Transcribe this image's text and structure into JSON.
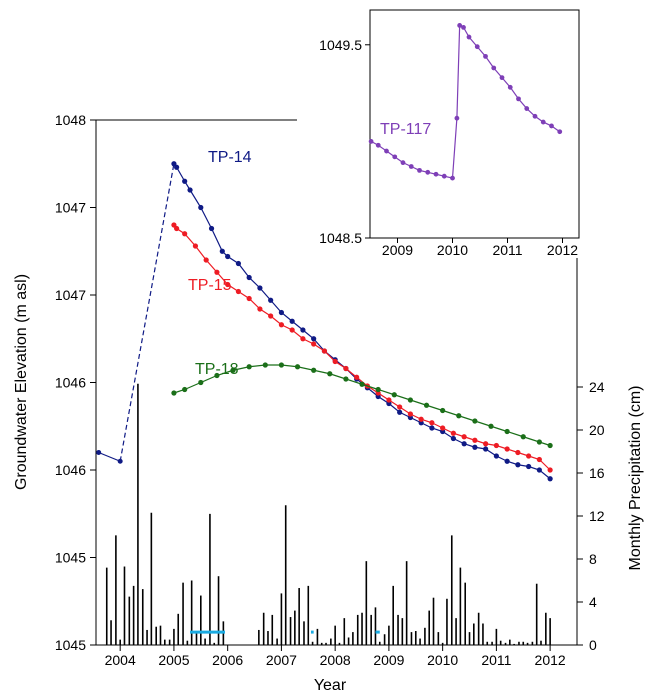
{
  "chart_data": [
    {
      "type": "line",
      "title": "",
      "xlabel": "Year",
      "ylabel": "Groundwater Elevation  (m asl)",
      "y2label": "Monthly Precipitation (cm)",
      "xlim": [
        2003.55,
        2012.5
      ],
      "ylim": [
        1045.0,
        1048.0
      ],
      "x_tick_values": [
        2004.0,
        2005.0,
        2006.0,
        2007.0,
        2008.0,
        2009.0,
        2010.0,
        2011.0,
        2012.0
      ],
      "x_tick_labels": [
        "2004",
        "2005",
        "2006",
        "2007",
        "2008",
        "2009",
        "2010",
        "2011",
        "2012"
      ],
      "y_tick_values": [
        1045.0,
        1045.5,
        1046.0,
        1046.5,
        1047.0,
        1047.5,
        1048.0
      ],
      "y_tick_labels": [
        "1045",
        "1045",
        "1046",
        "1046",
        "1047",
        "1047",
        "1048"
      ],
      "y2lim": [
        0,
        36
      ],
      "y2_tick_values": [
        0,
        4,
        8,
        12,
        16,
        20,
        24
      ],
      "y2_tick_labels": [
        "0",
        "4",
        "8",
        "12",
        "16",
        "20",
        "24"
      ],
      "grid": false,
      "series": [
        {
          "name": "TP-14",
          "color": "#0f1a85",
          "connector": [
            [
              2003.6,
              1046.1
            ],
            [
              2004.0,
              1046.05
            ],
            [
              2005.0,
              1047.75
            ]
          ],
          "x": [
            2005.0,
            2005.05,
            2005.2,
            2005.3,
            2005.5,
            2005.7,
            2005.9,
            2006.0,
            2006.2,
            2006.4,
            2006.6,
            2006.8,
            2007.0,
            2007.2,
            2007.4,
            2007.6,
            2007.8,
            2008.0,
            2008.2,
            2008.4,
            2008.6,
            2008.8,
            2009.0,
            2009.2,
            2009.4,
            2009.6,
            2009.8,
            2010.0,
            2010.2,
            2010.4,
            2010.6,
            2010.8,
            2011.0,
            2011.2,
            2011.4,
            2011.6,
            2011.8,
            2012.0
          ],
          "y": [
            1047.75,
            1047.73,
            1047.65,
            1047.6,
            1047.5,
            1047.38,
            1047.25,
            1047.22,
            1047.18,
            1047.1,
            1047.04,
            1046.97,
            1046.9,
            1046.85,
            1046.8,
            1046.75,
            1046.68,
            1046.63,
            1046.58,
            1046.52,
            1046.47,
            1046.42,
            1046.38,
            1046.33,
            1046.3,
            1046.27,
            1046.24,
            1046.22,
            1046.18,
            1046.15,
            1046.13,
            1046.12,
            1046.08,
            1046.05,
            1046.03,
            1046.02,
            1046.0,
            1045.95
          ]
        },
        {
          "name": "TP-15",
          "color": "#ee1c24",
          "x": [
            2005.0,
            2005.05,
            2005.2,
            2005.4,
            2005.6,
            2005.8,
            2006.0,
            2006.2,
            2006.4,
            2006.6,
            2006.8,
            2007.0,
            2007.2,
            2007.4,
            2007.6,
            2007.8,
            2008.0,
            2008.2,
            2008.4,
            2008.6,
            2008.8,
            2009.0,
            2009.2,
            2009.4,
            2009.6,
            2009.8,
            2010.0,
            2010.2,
            2010.4,
            2010.6,
            2010.8,
            2011.0,
            2011.2,
            2011.4,
            2011.6,
            2011.8,
            2012.0
          ],
          "y": [
            1047.4,
            1047.38,
            1047.35,
            1047.28,
            1047.2,
            1047.13,
            1047.06,
            1047.02,
            1046.98,
            1046.92,
            1046.88,
            1046.83,
            1046.8,
            1046.75,
            1046.72,
            1046.68,
            1046.62,
            1046.58,
            1046.53,
            1046.48,
            1046.44,
            1046.4,
            1046.36,
            1046.32,
            1046.29,
            1046.27,
            1046.24,
            1046.21,
            1046.19,
            1046.17,
            1046.15,
            1046.14,
            1046.12,
            1046.1,
            1046.08,
            1046.06,
            1046.0
          ]
        },
        {
          "name": "TP-18",
          "color": "#1b6f19",
          "x": [
            2005.0,
            2005.2,
            2005.5,
            2005.8,
            2006.1,
            2006.4,
            2006.7,
            2007.0,
            2007.3,
            2007.6,
            2007.9,
            2008.2,
            2008.5,
            2008.8,
            2009.1,
            2009.4,
            2009.7,
            2010.0,
            2010.3,
            2010.6,
            2010.9,
            2011.2,
            2011.5,
            2011.8,
            2012.0
          ],
          "y": [
            1046.44,
            1046.46,
            1046.5,
            1046.54,
            1046.57,
            1046.59,
            1046.6,
            1046.6,
            1046.59,
            1046.57,
            1046.55,
            1046.52,
            1046.49,
            1046.46,
            1046.43,
            1046.4,
            1046.37,
            1046.34,
            1046.31,
            1046.28,
            1046.25,
            1046.22,
            1046.19,
            1046.16,
            1046.14
          ]
        }
      ],
      "precipitation_color": "#000000",
      "precipitation": {
        "x": [
          2003.75,
          2003.83,
          2003.92,
          2004.0,
          2004.08,
          2004.17,
          2004.25,
          2004.33,
          2004.42,
          2004.5,
          2004.58,
          2004.67,
          2004.75,
          2004.83,
          2004.92,
          2005.0,
          2005.08,
          2005.17,
          2005.25,
          2005.33,
          2005.42,
          2005.5,
          2005.58,
          2005.67,
          2005.75,
          2005.83,
          2005.92,
          2006.58,
          2006.67,
          2006.75,
          2006.83,
          2006.92,
          2007.0,
          2007.08,
          2007.17,
          2007.25,
          2007.33,
          2007.42,
          2007.5,
          2007.58,
          2007.67,
          2007.75,
          2007.83,
          2007.92,
          2008.0,
          2008.08,
          2008.17,
          2008.25,
          2008.33,
          2008.42,
          2008.5,
          2008.58,
          2008.67,
          2008.75,
          2008.83,
          2008.92,
          2009.0,
          2009.08,
          2009.17,
          2009.25,
          2009.33,
          2009.42,
          2009.5,
          2009.58,
          2009.67,
          2009.75,
          2009.83,
          2009.92,
          2010.0,
          2010.08,
          2010.17,
          2010.25,
          2010.33,
          2010.42,
          2010.5,
          2010.58,
          2010.67,
          2010.75,
          2010.83,
          2010.92,
          2011.0,
          2011.08,
          2011.17,
          2011.25,
          2011.33,
          2011.42,
          2011.5,
          2011.58,
          2011.67,
          2011.75,
          2011.83,
          2011.92,
          2012.0
        ],
        "values": [
          7.2,
          2.3,
          10.2,
          0.5,
          7.3,
          4.5,
          5.5,
          24.3,
          5.2,
          1.4,
          12.3,
          1.7,
          1.8,
          0.5,
          0.5,
          1.5,
          2.9,
          5.8,
          0.4,
          6.0,
          1.2,
          4.6,
          0.6,
          12.2,
          0.2,
          6.4,
          2.2,
          1.4,
          3.0,
          1.3,
          2.8,
          0.6,
          4.8,
          13.0,
          2.6,
          3.2,
          5.3,
          2.2,
          5.5,
          0.3,
          1.5,
          0.2,
          0.2,
          0.6,
          1.8,
          0.2,
          2.5,
          0.7,
          1.2,
          2.8,
          3.0,
          7.8,
          2.8,
          3.5,
          0.3,
          1.0,
          1.8,
          5.5,
          2.8,
          2.5,
          7.8,
          1.2,
          1.3,
          0.6,
          1.6,
          3.2,
          4.4,
          1.2,
          0.2,
          4.3,
          10.2,
          2.5,
          7.2,
          5.8,
          1.2,
          2.0,
          3.0,
          2.0,
          0.3,
          0.3,
          1.5,
          0.4,
          0.2,
          0.5,
          0.1,
          0.3,
          0.3,
          0.2,
          0.3,
          5.7,
          0.4,
          3.0,
          2.5
        ]
      },
      "no_data_bars": {
        "color": "#1aabe2",
        "ranges": [
          [
            2005.3,
            2005.95
          ],
          [
            2007.55,
            2007.6
          ],
          [
            2008.75,
            2008.83
          ]
        ],
        "level": 1.2
      }
    },
    {
      "type": "line",
      "title": "",
      "xlabel": "",
      "ylabel": "",
      "xlim": [
        2008.5,
        2012.3
      ],
      "ylim": [
        1048.5,
        1049.68
      ],
      "x_tick_values": [
        2009.0,
        2010.0,
        2011.0,
        2012.0
      ],
      "x_tick_labels": [
        "2009",
        "2010",
        "2011",
        "2012"
      ],
      "y_tick_values": [
        1048.5,
        1049.5
      ],
      "y_tick_labels": [
        "1048.5",
        "1049.5"
      ],
      "grid": false,
      "series": [
        {
          "name": "TP-117",
          "color": "#7e3fb7",
          "x": [
            2008.52,
            2008.65,
            2008.8,
            2008.95,
            2009.1,
            2009.25,
            2009.4,
            2009.55,
            2009.7,
            2009.85,
            2010.0,
            2010.08,
            2010.13,
            2010.2,
            2010.3,
            2010.45,
            2010.6,
            2010.75,
            2010.9,
            2011.05,
            2011.2,
            2011.35,
            2011.5,
            2011.65,
            2011.8,
            2011.95
          ],
          "y": [
            1049.0,
            1048.98,
            1048.95,
            1048.92,
            1048.89,
            1048.87,
            1048.85,
            1048.84,
            1048.83,
            1048.82,
            1048.81,
            1049.12,
            1049.6,
            1049.59,
            1049.54,
            1049.49,
            1049.44,
            1049.38,
            1049.33,
            1049.28,
            1049.22,
            1049.17,
            1049.13,
            1049.1,
            1049.08,
            1049.05
          ]
        }
      ]
    }
  ]
}
